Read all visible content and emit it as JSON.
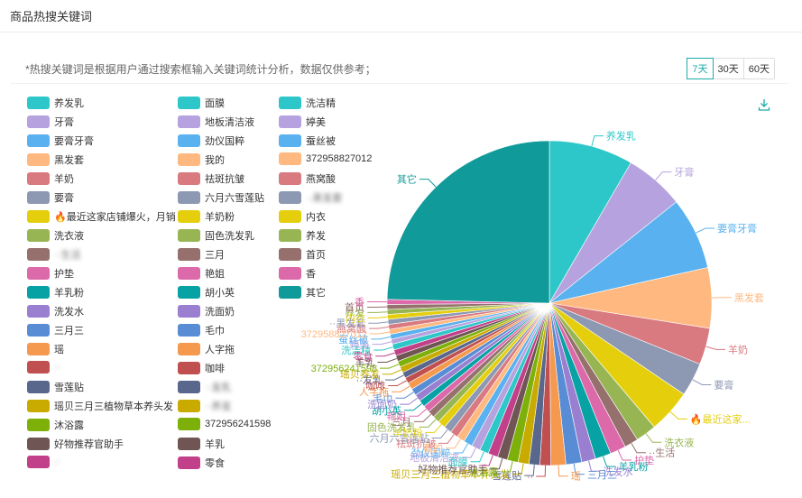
{
  "header": {
    "title": "商品热搜关键词"
  },
  "note": "*热搜关键词是根据用户通过搜索框输入关键词统计分析，数据仅供参考；",
  "tabs": [
    {
      "label": "7天",
      "active": true
    },
    {
      "label": "30天",
      "active": false
    },
    {
      "label": "60天",
      "active": false
    }
  ],
  "download_icon": "download-icon",
  "chart_data": {
    "type": "pie",
    "series_name": "",
    "slices": [
      {
        "label": "其它",
        "value": 25.0,
        "color": "#119a9a",
        "legend": "其它"
      },
      {
        "label": "养发乳",
        "value": 8.5,
        "color": "#2ec7c9",
        "legend": "养发乳"
      },
      {
        "label": "牙膏",
        "value": 6.0,
        "color": "#b6a2de",
        "legend": "牙膏"
      },
      {
        "label": "要膏牙膏",
        "value": 7.3,
        "color": "#5ab1ef",
        "legend": "要膏牙膏"
      },
      {
        "label": "黑发套",
        "value": 6.1,
        "color": "#ffb980",
        "legend": "黑发套"
      },
      {
        "label": "羊奶",
        "value": 3.7,
        "color": "#d87a80",
        "legend": "羊奶"
      },
      {
        "label": "要膏",
        "value": 3.4,
        "color": "#8d98b3",
        "legend": "要膏"
      },
      {
        "label": "🔥最近这家...",
        "value": 4.4,
        "color": "#e5cf0d",
        "legend": "🔥最近这家店铺爆火，月销"
      },
      {
        "label": "洗衣液",
        "value": 2.1,
        "color": "#97b552",
        "legend": "洗衣液"
      },
      {
        "label": "··生活",
        "value": 1.4,
        "color": "#95706d",
        "legend": "··生活"
      },
      {
        "label": "护垫",
        "value": 1.6,
        "color": "#dc69aa",
        "legend": "护垫"
      },
      {
        "label": "羊乳粉",
        "value": 1.6,
        "color": "#07a2a4",
        "legend": "羊乳粉"
      },
      {
        "label": "洗发水",
        "value": 1.4,
        "color": "#9a7fd1",
        "legend": "洗发水"
      },
      {
        "label": "三月三",
        "value": 1.6,
        "color": "#588dd5",
        "legend": "三月三"
      },
      {
        "label": "瑶",
        "value": 1.5,
        "color": "#f5994e",
        "legend": "瑶"
      },
      {
        "label": "··",
        "value": 1.1,
        "color": "#c05050",
        "legend": "··"
      },
      {
        "label": "雪莲贴",
        "value": 1.1,
        "color": "#59678c",
        "legend": "雪莲贴"
      },
      {
        "label": "瑶贝三月三植物草本养头发",
        "value": 1.1,
        "color": "#c9ab00",
        "legend": "瑶贝三月三植物草本养头发"
      },
      {
        "label": "沐浴露",
        "value": 1.1,
        "color": "#7eb00a",
        "legend": "沐浴露"
      },
      {
        "label": "好物推荐官助手",
        "value": 1.0,
        "color": "#6f5553",
        "legend": "好物推荐官助手"
      },
      {
        "label": "···",
        "value": 1.0,
        "color": "#c14089",
        "legend": "··"
      },
      {
        "label": "面膜",
        "value": 0.9,
        "color": "#2ec7c9",
        "legend": "面膜"
      },
      {
        "label": "地板清洁液",
        "value": 0.9,
        "color": "#b6a2de",
        "legend": "地板清洁液"
      },
      {
        "label": "劲仪国粹",
        "value": 0.9,
        "color": "#5ab1ef",
        "legend": "劲仪国粹"
      },
      {
        "label": "我的",
        "value": 0.8,
        "color": "#ffb980",
        "legend": "我的"
      },
      {
        "label": "祛斑抗皱",
        "value": 0.8,
        "color": "#d87a80",
        "legend": "祛斑抗皱"
      },
      {
        "label": "六月六雪莲贴",
        "value": 0.8,
        "color": "#8d98b3",
        "legend": "六月六雪莲贴"
      },
      {
        "label": "羊奶粉",
        "value": 0.8,
        "color": "#e5cf0d",
        "legend": "羊奶粉"
      },
      {
        "label": "固色洗发乳",
        "value": 0.7,
        "color": "#97b552",
        "legend": "固色洗发乳"
      },
      {
        "label": "三月",
        "value": 0.7,
        "color": "#95706d",
        "legend": "三月"
      },
      {
        "label": "艳姐",
        "value": 0.7,
        "color": "#dc69aa",
        "legend": "艳姐"
      },
      {
        "label": "胡小英",
        "value": 0.7,
        "color": "#07a2a4",
        "legend": "胡小英"
      },
      {
        "label": "洗面奶",
        "value": 0.7,
        "color": "#9a7fd1",
        "legend": "洗面奶"
      },
      {
        "label": "毛巾",
        "value": 0.7,
        "color": "#588dd5",
        "legend": "毛巾"
      },
      {
        "label": "人字拖",
        "value": 0.7,
        "color": "#f5994e",
        "legend": "人字拖"
      },
      {
        "label": "咖啡",
        "value": 0.6,
        "color": "#c05050",
        "legend": "咖啡"
      },
      {
        "label": "··发乳",
        "value": 0.6,
        "color": "#59678c",
        "legend": "··发乳"
      },
      {
        "label": "瑶贝养发",
        "value": 0.6,
        "color": "#c9ab00",
        "legend": "··养发"
      },
      {
        "label": "372956241598",
        "value": 0.6,
        "color": "#7eb00a",
        "legend": "372956241598"
      },
      {
        "label": "羊乳",
        "value": 0.6,
        "color": "#6f5553",
        "legend": "羊乳"
      },
      {
        "label": "零食",
        "value": 0.6,
        "color": "#c14089",
        "legend": "零食"
      },
      {
        "label": "洗洁精",
        "value": 0.6,
        "color": "#2ec7c9",
        "legend": "洗洁精"
      },
      {
        "label": "婷美",
        "value": 0.5,
        "color": "#b6a2de",
        "legend": "婷美"
      },
      {
        "label": "蚕丝被",
        "value": 0.5,
        "color": "#5ab1ef",
        "legend": "蚕丝被"
      },
      {
        "label": "372958827012",
        "value": 0.5,
        "color": "#ffb980",
        "legend": "372958827012"
      },
      {
        "label": "燕窝酸",
        "value": 0.5,
        "color": "#d87a80",
        "legend": "燕窝酸"
      },
      {
        "label": "··黑发套",
        "value": 0.5,
        "color": "#8d98b3",
        "legend": "··黑发套"
      },
      {
        "label": "内衣",
        "value": 0.5,
        "color": "#e5cf0d",
        "legend": "内衣"
      },
      {
        "label": "养发",
        "value": 0.5,
        "color": "#97b552",
        "legend": "养发"
      },
      {
        "label": "首页",
        "value": 0.5,
        "color": "#95706d",
        "legend": "首页"
      },
      {
        "label": "香",
        "value": 0.5,
        "color": "#dc69aa",
        "legend": "香"
      }
    ]
  }
}
